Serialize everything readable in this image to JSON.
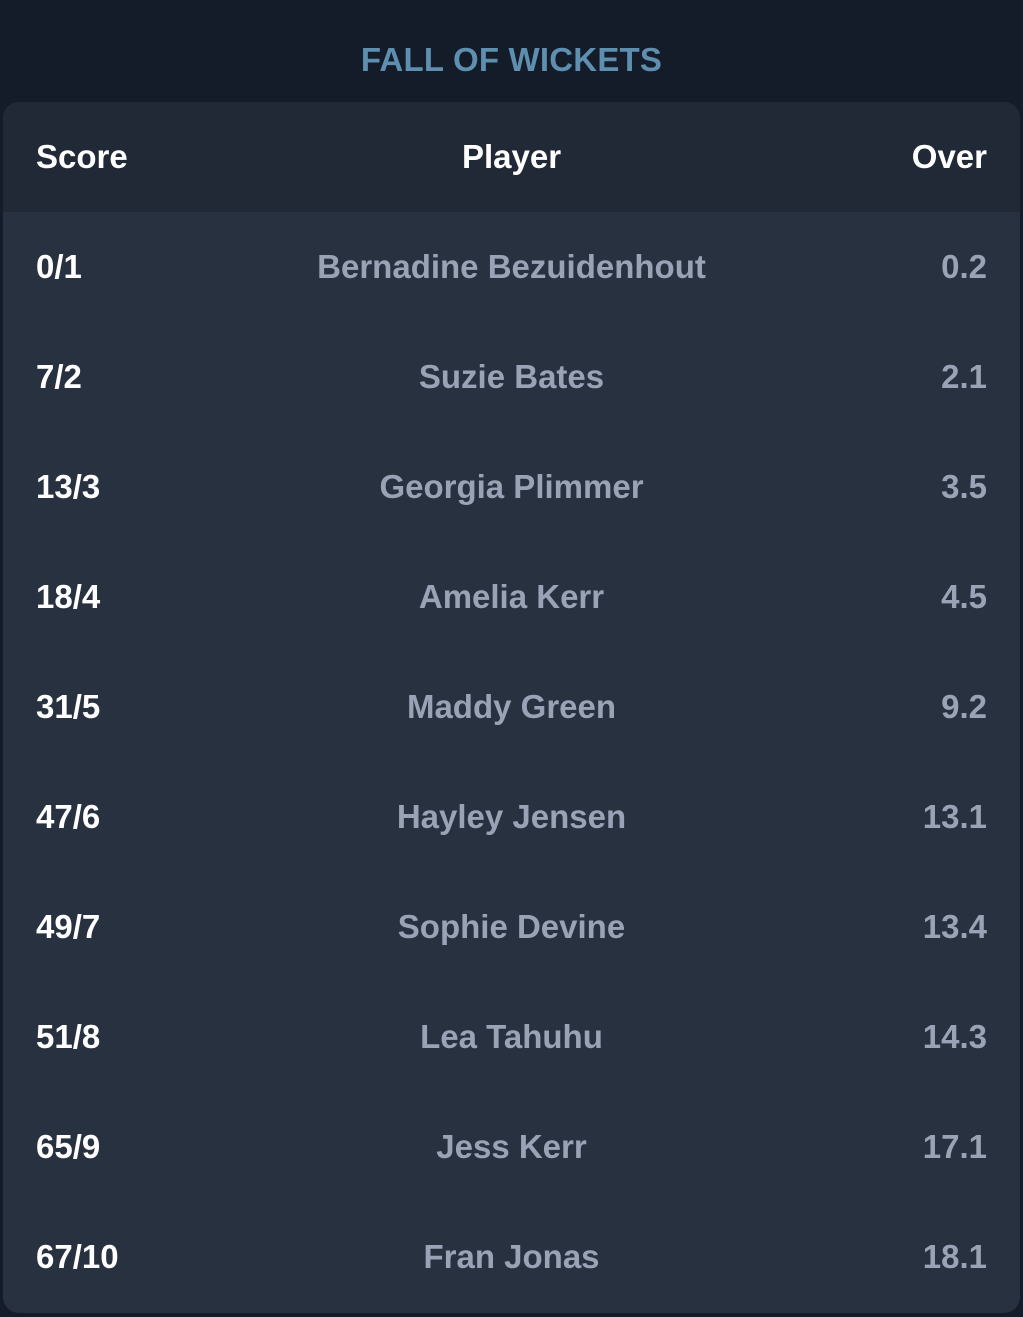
{
  "title": "FALL OF WICKETS",
  "headers": {
    "score": "Score",
    "player": "Player",
    "over": "Over"
  },
  "rows": [
    {
      "score": "0/1",
      "player": "Bernadine Bezuidenhout",
      "over": "0.2"
    },
    {
      "score": "7/2",
      "player": "Suzie Bates",
      "over": "2.1"
    },
    {
      "score": "13/3",
      "player": "Georgia Plimmer",
      "over": "3.5"
    },
    {
      "score": "18/4",
      "player": "Amelia Kerr",
      "over": "4.5"
    },
    {
      "score": "31/5",
      "player": "Maddy Green",
      "over": "9.2"
    },
    {
      "score": "47/6",
      "player": "Hayley Jensen",
      "over": "13.1"
    },
    {
      "score": "49/7",
      "player": "Sophie Devine",
      "over": "13.4"
    },
    {
      "score": "51/8",
      "player": "Lea Tahuhu",
      "over": "14.3"
    },
    {
      "score": "65/9",
      "player": "Jess Kerr",
      "over": "17.1"
    },
    {
      "score": "67/10",
      "player": "Fran Jonas",
      "over": "18.1"
    }
  ],
  "colors": {
    "background": "#141b29",
    "card": "#283140",
    "header": "#212937",
    "title": "#5f8fae",
    "score_text": "#ffffff",
    "muted_text": "#9aa3b5"
  }
}
